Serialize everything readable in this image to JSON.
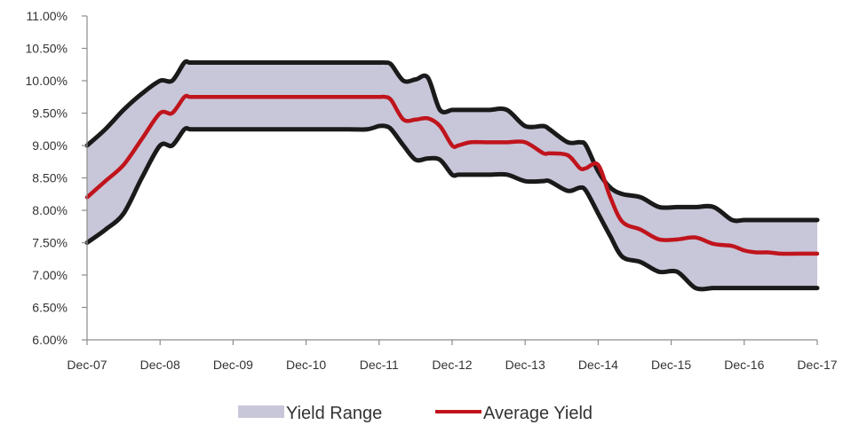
{
  "chart_data": {
    "type": "area",
    "title": "",
    "xlabel": "",
    "ylabel": "",
    "x_ticks": [
      "Dec-07",
      "Dec-08",
      "Dec-09",
      "Dec-10",
      "Dec-11",
      "Dec-12",
      "Dec-13",
      "Dec-14",
      "Dec-15",
      "Dec-16",
      "Dec-17"
    ],
    "y_ticks": [
      "6.00%",
      "6.50%",
      "7.00%",
      "7.50%",
      "8.00%",
      "8.50%",
      "9.00%",
      "9.50%",
      "10.00%",
      "10.50%",
      "11.00%"
    ],
    "ylim": [
      6.0,
      11.0
    ],
    "xlim": [
      2007.917,
      2017.917
    ],
    "grid": false,
    "legend_position": "bottom-center",
    "x": [
      2007.917,
      2008.167,
      2008.417,
      2008.667,
      2008.917,
      2009.083,
      2009.25,
      2009.333,
      2009.583,
      2010.0,
      2010.5,
      2011.0,
      2011.5,
      2011.75,
      2011.917,
      2012.0,
      2012.083,
      2012.25,
      2012.417,
      2012.583,
      2012.75,
      2012.917,
      2013.0,
      2013.167,
      2013.417,
      2013.667,
      2013.917,
      2014.167,
      2014.25,
      2014.5,
      2014.667,
      2014.75,
      2014.917,
      2015.083,
      2015.25,
      2015.5,
      2015.75,
      2016.0,
      2016.25,
      2016.5,
      2016.75,
      2016.917,
      2017.083,
      2017.25,
      2017.417,
      2017.667,
      2017.917
    ],
    "series": [
      {
        "name": "Yield Range",
        "color": "#c8c6d9",
        "upper": [
          9.0,
          9.25,
          9.55,
          9.8,
          10.0,
          10.0,
          10.28,
          10.28,
          10.28,
          10.28,
          10.28,
          10.28,
          10.28,
          10.28,
          10.28,
          10.28,
          10.25,
          10.0,
          10.02,
          10.05,
          9.55,
          9.55,
          9.55,
          9.55,
          9.55,
          9.55,
          9.3,
          9.3,
          9.25,
          9.05,
          9.05,
          9.0,
          8.6,
          8.35,
          8.25,
          8.2,
          8.05,
          8.05,
          8.05,
          8.05,
          7.85,
          7.85,
          7.85,
          7.85,
          7.85,
          7.85,
          7.85
        ],
        "lower": [
          7.5,
          7.7,
          7.95,
          8.5,
          9.0,
          9.0,
          9.25,
          9.25,
          9.25,
          9.25,
          9.25,
          9.25,
          9.25,
          9.25,
          9.3,
          9.3,
          9.25,
          9.0,
          8.78,
          8.8,
          8.78,
          8.55,
          8.55,
          8.55,
          8.55,
          8.55,
          8.45,
          8.45,
          8.45,
          8.3,
          8.35,
          8.3,
          7.95,
          7.6,
          7.28,
          7.2,
          7.05,
          7.05,
          6.8,
          6.8,
          6.8,
          6.8,
          6.8,
          6.8,
          6.8,
          6.8,
          6.8
        ]
      },
      {
        "name": "Average Yield",
        "color": "#c0141c",
        "values": [
          8.2,
          8.45,
          8.7,
          9.1,
          9.5,
          9.5,
          9.75,
          9.75,
          9.75,
          9.75,
          9.75,
          9.75,
          9.75,
          9.75,
          9.75,
          9.75,
          9.7,
          9.4,
          9.4,
          9.42,
          9.3,
          9.0,
          9.0,
          9.05,
          9.05,
          9.05,
          9.05,
          8.88,
          8.88,
          8.85,
          8.65,
          8.65,
          8.7,
          8.2,
          7.82,
          7.7,
          7.55,
          7.55,
          7.58,
          7.48,
          7.45,
          7.38,
          7.35,
          7.35,
          7.33,
          7.33,
          7.33
        ]
      }
    ]
  }
}
